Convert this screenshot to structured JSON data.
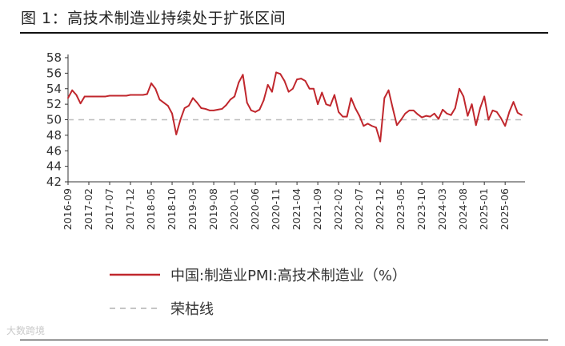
{
  "figure": {
    "title": "图 1：高技术制造业持续处于扩张区间",
    "watermark": "大数跨境"
  },
  "chart_data": {
    "type": "line",
    "xlabel": "",
    "ylabel": "",
    "ylim": [
      42,
      58
    ],
    "yticks": [
      42,
      44,
      46,
      48,
      50,
      52,
      54,
      56,
      58
    ],
    "xtick_labels": [
      "2016-09",
      "2017-02",
      "2017-07",
      "2017-12",
      "2018-05",
      "2018-10",
      "2019-03",
      "2019-08",
      "2020-01",
      "2020-06",
      "2020-11",
      "2021-04",
      "2021-09",
      "2022-02",
      "2022-07",
      "2022-12",
      "2023-05",
      "2023-10",
      "2024-03",
      "2024-08",
      "2025-01",
      "2025-06"
    ],
    "legend_position": "bottom",
    "grid": false,
    "series": [
      {
        "name": "中国:制造业PMI:高技术制造业（%）",
        "color": "#c0272d",
        "x": [
          "2016-09",
          "2016-10",
          "2016-11",
          "2016-12",
          "2017-01",
          "2017-02",
          "2017-03",
          "2017-04",
          "2017-05",
          "2017-06",
          "2017-07",
          "2017-08",
          "2017-09",
          "2017-10",
          "2017-11",
          "2017-12",
          "2018-01",
          "2018-02",
          "2018-03",
          "2018-04",
          "2018-05",
          "2018-06",
          "2018-07",
          "2018-08",
          "2018-09",
          "2018-10",
          "2018-11",
          "2018-12",
          "2019-01",
          "2019-02",
          "2019-03",
          "2019-04",
          "2019-05",
          "2019-06",
          "2019-07",
          "2019-08",
          "2019-09",
          "2019-10",
          "2019-11",
          "2019-12",
          "2020-01",
          "2020-02",
          "2020-03",
          "2020-04",
          "2020-05",
          "2020-06",
          "2020-07",
          "2020-08",
          "2020-09",
          "2020-10",
          "2020-11",
          "2020-12",
          "2021-01",
          "2021-02",
          "2021-03",
          "2021-04",
          "2021-05",
          "2021-06",
          "2021-07",
          "2021-08",
          "2021-09",
          "2021-10",
          "2021-11",
          "2021-12",
          "2022-01",
          "2022-02",
          "2022-03",
          "2022-04",
          "2022-05",
          "2022-06",
          "2022-07",
          "2022-08",
          "2022-09",
          "2022-10",
          "2022-11",
          "2022-12",
          "2023-01",
          "2023-02",
          "2023-03",
          "2023-04",
          "2023-05",
          "2023-06",
          "2023-07",
          "2023-08",
          "2023-09",
          "2023-10",
          "2023-11",
          "2023-12",
          "2024-01",
          "2024-02",
          "2024-03",
          "2024-04",
          "2024-05",
          "2024-06",
          "2024-07",
          "2024-08",
          "2024-09",
          "2024-10",
          "2024-11",
          "2024-12",
          "2025-01",
          "2025-02",
          "2025-03",
          "2025-04",
          "2025-05",
          "2025-06",
          "2025-07",
          "2025-08",
          "2025-09",
          "2025-10"
        ],
        "values": [
          52.8,
          53.8,
          53.2,
          52.1,
          53.0,
          53.0,
          53.0,
          53.0,
          53.0,
          53.0,
          53.1,
          53.1,
          53.1,
          53.1,
          53.1,
          53.2,
          53.2,
          53.2,
          53.2,
          53.3,
          54.7,
          54.0,
          52.6,
          52.2,
          51.8,
          50.8,
          48.1,
          50.0,
          51.5,
          51.8,
          52.8,
          52.2,
          51.5,
          51.4,
          51.2,
          51.2,
          51.3,
          51.4,
          51.9,
          52.6,
          53.0,
          54.8,
          55.8,
          52.2,
          51.2,
          51.0,
          51.3,
          52.5,
          54.5,
          53.6,
          56.1,
          55.9,
          55.0,
          53.6,
          54.0,
          55.2,
          55.3,
          55.0,
          54.0,
          54.0,
          52.0,
          53.5,
          52.0,
          51.8,
          53.2,
          51.0,
          50.4,
          50.4,
          52.8,
          51.5,
          50.5,
          49.2,
          49.5,
          49.2,
          49.0,
          47.2,
          52.8,
          53.8,
          51.5,
          49.3,
          50.0,
          50.8,
          51.2,
          51.2,
          50.7,
          50.3,
          50.5,
          50.4,
          50.8,
          50.1,
          51.3,
          50.8,
          50.6,
          51.5,
          54.0,
          53.0,
          50.5,
          52.0,
          49.3,
          51.5,
          53.0,
          50.0,
          51.2,
          51.0,
          50.2,
          49.2,
          51.0,
          52.3,
          50.9,
          50.6
        ],
        "peak_label": ""
      },
      {
        "name": "荣枯线",
        "color": "#bdbdbd",
        "dashed": true,
        "constant": 50
      }
    ]
  }
}
